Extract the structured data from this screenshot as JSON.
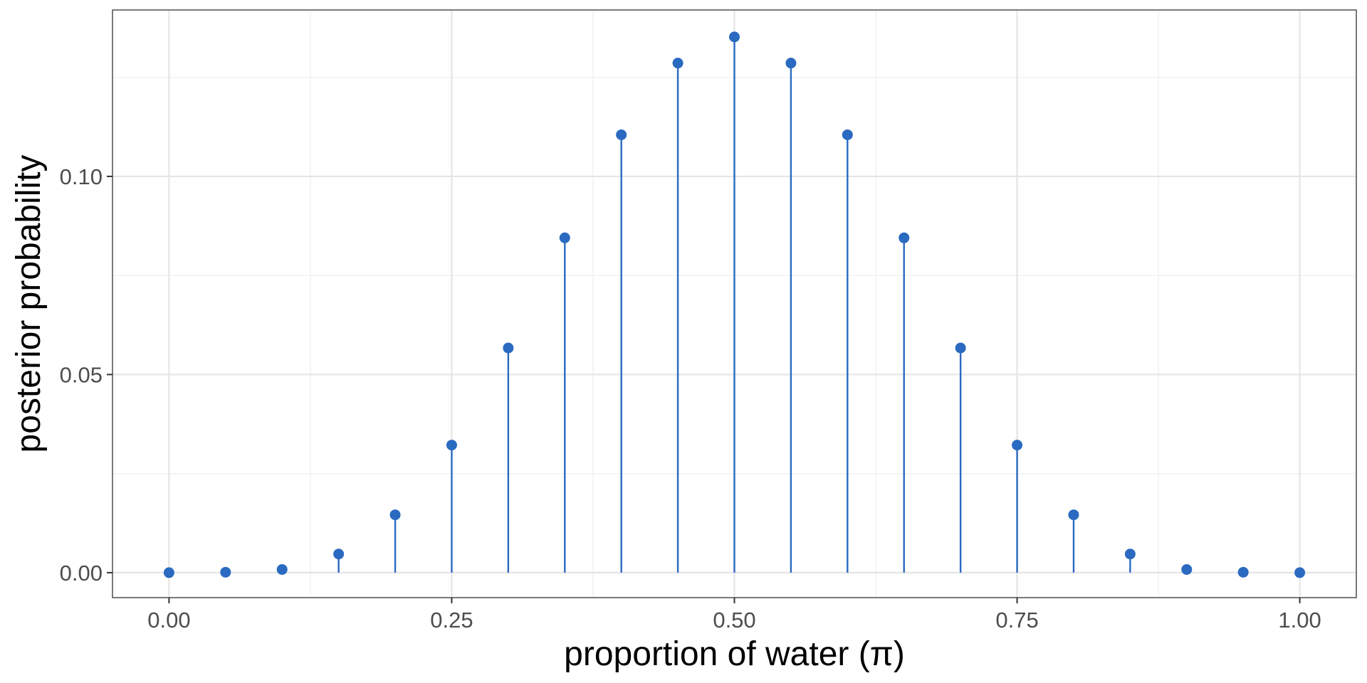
{
  "chart_data": {
    "type": "scatter",
    "title": "",
    "xlabel": "proportion of water (π)",
    "ylabel": "posterior probability",
    "xlim": [
      -0.05,
      1.05
    ],
    "ylim": [
      -0.0063,
      0.142
    ],
    "x_ticks": [
      0.0,
      0.25,
      0.5,
      0.75,
      1.0
    ],
    "x_tick_labels": [
      "0.00",
      "0.25",
      "0.50",
      "0.75",
      "1.00"
    ],
    "y_ticks": [
      0.0,
      0.05,
      0.1
    ],
    "y_tick_labels": [
      "0.00",
      "0.05",
      "0.10"
    ],
    "grid": true,
    "mark_style": "lollipop",
    "color": "#2a6ac0",
    "series": [
      {
        "x": [
          0.0,
          0.05,
          0.1,
          0.15,
          0.2,
          0.25,
          0.3,
          0.35,
          0.4,
          0.45,
          0.5,
          0.55,
          0.6,
          0.65,
          0.7,
          0.75,
          0.8,
          0.85,
          0.9,
          0.95,
          1.0
        ],
        "y": [
          0.0,
          0.0001,
          0.0008,
          0.0047,
          0.0146,
          0.0322,
          0.0567,
          0.0845,
          0.1105,
          0.1286,
          0.1352,
          0.1286,
          0.1105,
          0.0845,
          0.0567,
          0.0322,
          0.0146,
          0.0047,
          0.0008,
          0.0001,
          0.0
        ]
      }
    ]
  }
}
